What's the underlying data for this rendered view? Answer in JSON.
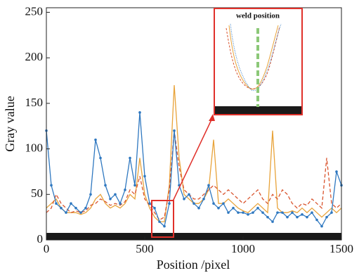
{
  "chart_data": {
    "type": "line",
    "xlabel": "Position /pixel",
    "ylabel": "Gray value",
    "annotation": "weld position",
    "x": [
      0,
      25,
      50,
      75,
      100,
      125,
      150,
      175,
      200,
      225,
      250,
      275,
      300,
      325,
      350,
      375,
      400,
      425,
      450,
      475,
      500,
      525,
      550,
      575,
      600,
      625,
      650,
      675,
      700,
      725,
      750,
      775,
      800,
      825,
      850,
      875,
      900,
      925,
      950,
      975,
      1000,
      1025,
      1050,
      1075,
      1100,
      1125,
      1150,
      1175,
      1200,
      1225,
      1250,
      1275,
      1300,
      1325,
      1350,
      1375,
      1400,
      1425,
      1450,
      1475,
      1500
    ],
    "series": [
      {
        "color": "#e8a33a",
        "style": "solid",
        "values": [
          35,
          40,
          45,
          35,
          30,
          30,
          30,
          28,
          30,
          35,
          45,
          50,
          40,
          35,
          38,
          35,
          40,
          50,
          45,
          90,
          50,
          35,
          25,
          20,
          20,
          60,
          170,
          90,
          50,
          45,
          40,
          40,
          45,
          55,
          110,
          40,
          40,
          45,
          40,
          35,
          32,
          30,
          35,
          40,
          35,
          30,
          120,
          35,
          30,
          30,
          32,
          30,
          35,
          30,
          35,
          30,
          25,
          30,
          35,
          30,
          35
        ]
      },
      {
        "color": "#d9542e",
        "style": "dashed",
        "values": [
          30,
          35,
          50,
          40,
          35,
          30,
          32,
          30,
          32,
          38,
          40,
          45,
          42,
          38,
          40,
          38,
          42,
          55,
          50,
          70,
          45,
          38,
          30,
          22,
          25,
          55,
          120,
          80,
          55,
          50,
          45,
          45,
          50,
          55,
          60,
          55,
          50,
          55,
          50,
          45,
          40,
          45,
          50,
          55,
          45,
          40,
          50,
          45,
          55,
          50,
          40,
          35,
          40,
          38,
          45,
          40,
          35,
          90,
          40,
          35,
          40
        ]
      },
      {
        "color": "#2f78c0",
        "style": "markers",
        "values": [
          120,
          60,
          40,
          35,
          30,
          40,
          35,
          30,
          35,
          50,
          110,
          90,
          60,
          45,
          50,
          40,
          55,
          90,
          60,
          140,
          70,
          40,
          35,
          20,
          15,
          40,
          120,
          60,
          45,
          50,
          40,
          35,
          45,
          60,
          40,
          35,
          40,
          30,
          35,
          30,
          30,
          28,
          30,
          35,
          30,
          25,
          20,
          30,
          30,
          25,
          30,
          25,
          28,
          25,
          30,
          22,
          15,
          25,
          30,
          75,
          60
        ]
      }
    ],
    "xlim": [
      0,
      1500
    ],
    "ylim": [
      0,
      255
    ],
    "xticks": [
      0,
      500,
      1000,
      1500
    ],
    "yticks": [
      0,
      50,
      100,
      150,
      200,
      250
    ]
  }
}
